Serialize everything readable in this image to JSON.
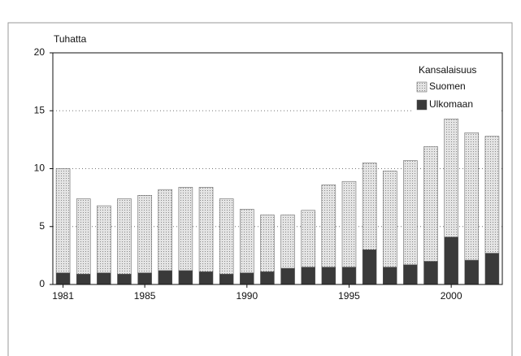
{
  "chart_data": {
    "type": "stacked_bar",
    "y_label": "Tuhatta",
    "legend_title": "Kansalaisuus",
    "categories": [
      "1981",
      null,
      null,
      null,
      "1985",
      null,
      null,
      null,
      null,
      "1990",
      null,
      null,
      null,
      null,
      "1995",
      null,
      null,
      null,
      null,
      "2000",
      null,
      null
    ],
    "series": [
      {
        "name": "Ulkomaan",
        "color": "#3a3a3a",
        "values": [
          1.0,
          0.9,
          1.0,
          0.9,
          1.0,
          1.2,
          1.2,
          1.1,
          0.9,
          1.0,
          1.1,
          1.4,
          1.5,
          1.5,
          1.5,
          3.0,
          1.5,
          1.7,
          2.0,
          4.1,
          2.1,
          2.7
        ]
      },
      {
        "name": "Suomen",
        "color": "#cfcfcf",
        "values": [
          9.0,
          6.5,
          5.8,
          6.5,
          6.7,
          7.0,
          7.2,
          7.3,
          6.5,
          5.5,
          4.9,
          4.6,
          4.9,
          7.1,
          7.4,
          7.5,
          8.3,
          9.0,
          9.9,
          10.2,
          11.0,
          10.1
        ]
      }
    ],
    "ylim": [
      0,
      20
    ],
    "yticks": [
      0,
      5,
      10,
      15,
      20
    ],
    "grid": true,
    "legend": "top-right"
  }
}
